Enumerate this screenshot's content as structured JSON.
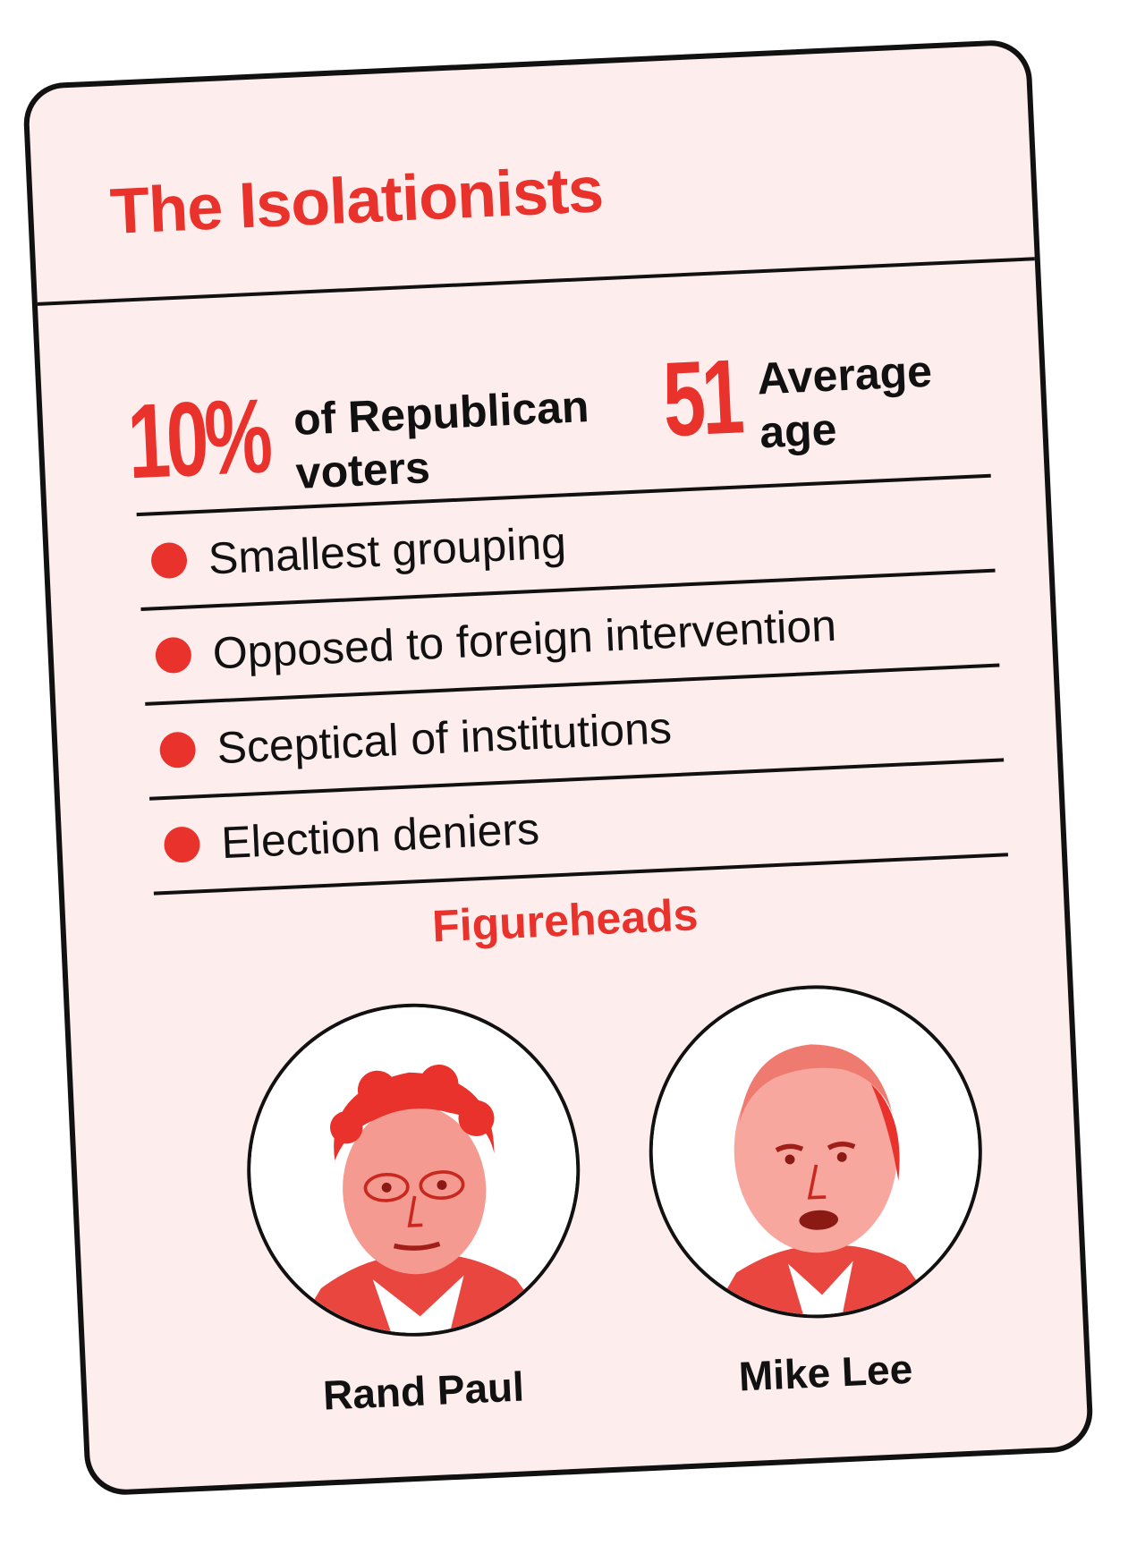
{
  "card": {
    "title": "The Isolationists",
    "accent_color": "#e8322b",
    "background_color": "#fdeeed",
    "ink_color": "#111111"
  },
  "stats": {
    "share": {
      "value": "10%",
      "label": "of Republican voters"
    },
    "age": {
      "value": "51",
      "label": "Average age"
    }
  },
  "traits": [
    {
      "label": "Smallest grouping"
    },
    {
      "label": "Opposed to foreign intervention"
    },
    {
      "label": "Sceptical of institutions"
    },
    {
      "label": "Election deniers"
    }
  ],
  "figureheads": {
    "heading": "Figureheads",
    "people": [
      {
        "name": "Rand Paul",
        "portrait_icon": "portrait-icon"
      },
      {
        "name": "Mike Lee",
        "portrait_icon": "portrait-icon"
      }
    ]
  }
}
